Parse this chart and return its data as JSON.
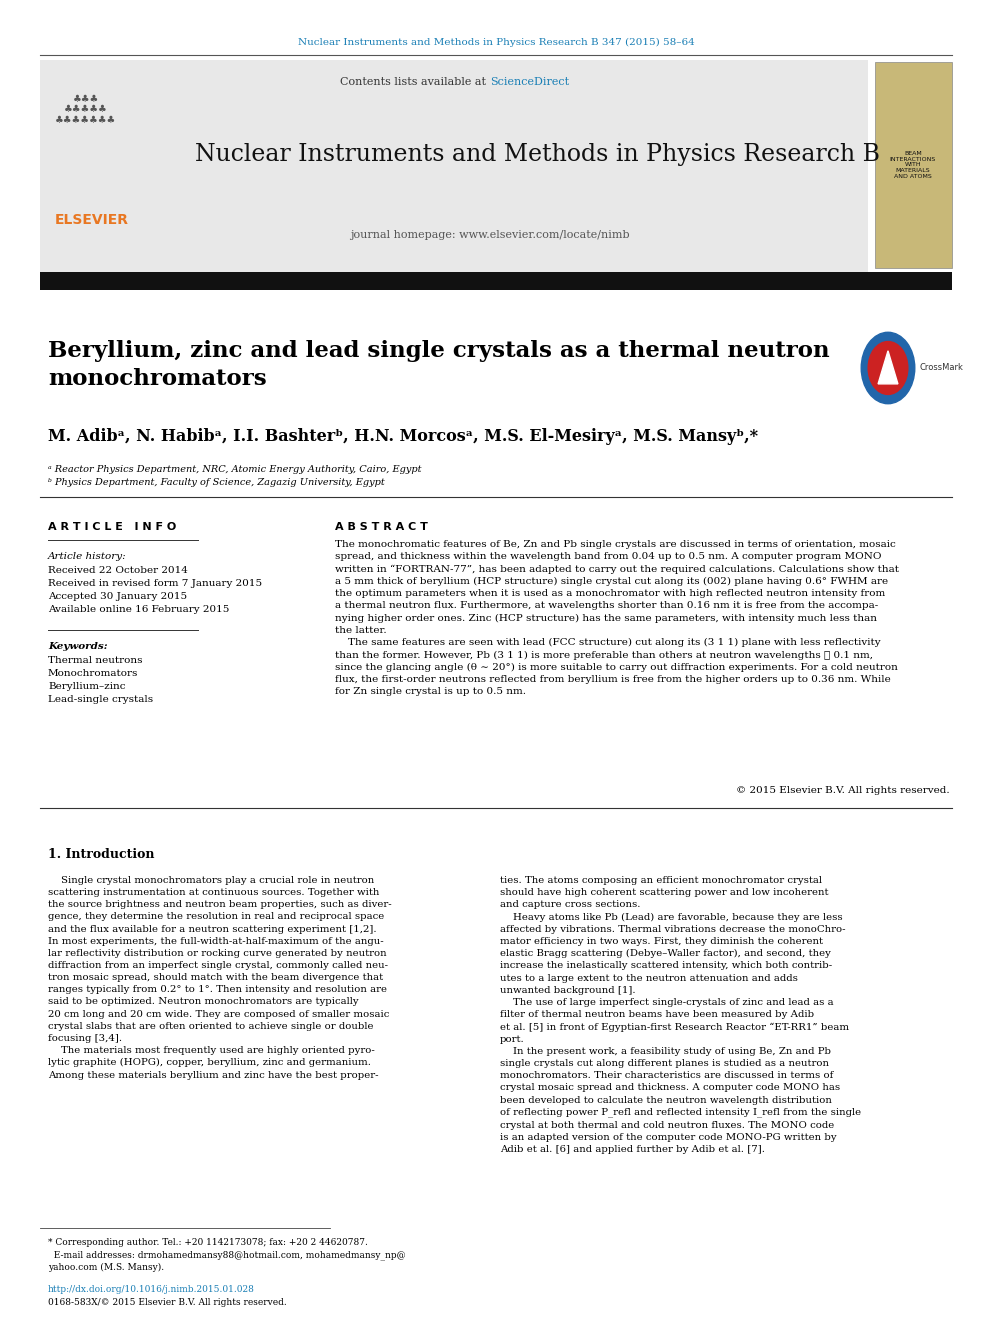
{
  "page_width": 9.92,
  "page_height": 13.23,
  "bg_color": "#ffffff",
  "top_link_text": "Nuclear Instruments and Methods in Physics Research B 347 (2015) 58–64",
  "top_link_color": "#1a7fb5",
  "journal_header_bg": "#e8e8e8",
  "sciencedirect_color": "#1a7fb5",
  "journal_name": "Nuclear Instruments and Methods in Physics Research B",
  "journal_homepage": "journal homepage: www.elsevier.com/locate/nimb",
  "article_title": "Beryllium, zinc and lead single crystals as a thermal neutron\nmonochromators",
  "authors": "M. Adibᵃ, N. Habibᵃ, I.I. Bashterᵇ, H.N. Morcosᵃ, M.S. El-Mesiryᵃ, M.S. Mansyᵇ,*",
  "affil_a": "ᵃ Reactor Physics Department, NRC, Atomic Energy Authority, Cairo, Egypt",
  "affil_b": "ᵇ Physics Department, Faculty of Science, Zagazig University, Egypt",
  "article_info_title": "A R T I C L E   I N F O",
  "abstract_title": "A B S T R A C T",
  "article_history_label": "Article history:",
  "received1": "Received 22 October 2014",
  "received2": "Received in revised form 7 January 2015",
  "accepted": "Accepted 30 January 2015",
  "available": "Available online 16 February 2015",
  "keywords_label": "Keywords:",
  "kw1": "Thermal neutrons",
  "kw2": "Monochromators",
  "kw3": "Beryllium–zinc",
  "kw4": "Lead-single crystals",
  "abstract_text": "The monochromatic features of Be, Zn and Pb single crystals are discussed in terms of orientation, mosaic\nspread, and thickness within the wavelength band from 0.04 up to 0.5 nm. A computer program MONO\nwritten in “FORTRAN-77”, has been adapted to carry out the required calculations. Calculations show that\na 5 mm thick of beryllium (HCP structure) single crystal cut along its (002) plane having 0.6° FWHM are\nthe optimum parameters when it is used as a monochromator with high reflected neutron intensity from\na thermal neutron flux. Furthermore, at wavelengths shorter than 0.16 nm it is free from the accompa-\nnying higher order ones. Zinc (HCP structure) has the same parameters, with intensity much less than\nthe latter.\n    The same features are seen with lead (FCC structure) cut along its (3 1 1) plane with less reflectivity\nthan the former. However, Pb (3 1 1) is more preferable than others at neutron wavelengths ⩽ 0.1 nm,\nsince the glancing angle (θ ∼ 20°) is more suitable to carry out diffraction experiments. For a cold neutron\nflux, the first-order neutrons reflected from beryllium is free from the higher orders up to 0.36 nm. While\nfor Zn single crystal is up to 0.5 nm.",
  "copyright_text": "© 2015 Elsevier B.V. All rights reserved.",
  "intro_title": "1. Introduction",
  "intro_col1": "    Single crystal monochromators play a crucial role in neutron\nscattering instrumentation at continuous sources. Together with\nthe source brightness and neutron beam properties, such as diver-\ngence, they determine the resolution in real and reciprocal space\nand the flux available for a neutron scattering experiment [1,2].\nIn most experiments, the full-width-at-half-maximum of the angu-\nlar reflectivity distribution or rocking curve generated by neutron\ndiffraction from an imperfect single crystal, commonly called neu-\ntron mosaic spread, should match with the beam divergence that\nranges typically from 0.2° to 1°. Then intensity and resolution are\nsaid to be optimized. Neutron monochromators are typically\n20 cm long and 20 cm wide. They are composed of smaller mosaic\ncrystal slabs that are often oriented to achieve single or double\nfocusing [3,4].\n    The materials most frequently used are highly oriented pyro-\nlytic graphite (HOPG), copper, beryllium, zinc and germanium.\nAmong these materials beryllium and zinc have the best proper-",
  "intro_col2": "ties. The atoms composing an efficient monochromator crystal\nshould have high coherent scattering power and low incoherent\nand capture cross sections.\n    Heavy atoms like Pb (Lead) are favorable, because they are less\naffected by vibrations. Thermal vibrations decrease the monoChro-\nmator efficiency in two ways. First, they diminish the coherent\nelastic Bragg scattering (Debye–Waller factor), and second, they\nincrease the inelastically scattered intensity, which both contrib-\nutes to a large extent to the neutron attenuation and adds\nunwanted background [1].\n    The use of large imperfect single-crystals of zinc and lead as a\nfilter of thermal neutron beams have been measured by Adib\net al. [5] in front of Egyptian-first Research Reactor “ET-RR1” beam\nport.\n    In the present work, a feasibility study of using Be, Zn and Pb\nsingle crystals cut along different planes is studied as a neutron\nmonochromators. Their characteristics are discussed in terms of\ncrystal mosaic spread and thickness. A computer code MONO has\nbeen developed to calculate the neutron wavelength distribution\nof reflecting power P_refl and reflected intensity I_refl from the single\ncrystal at both thermal and cold neutron fluxes. The MONO code\nis an adapted version of the computer code MONO-PG written by\nAdib et al. [6] and applied further by Adib et al. [7].",
  "footnote_text": "* Corresponding author. Tel.: +20 1142173078; fax: +20 2 44620787.\n  E-mail addresses: drmohamedmansy88@hotmail.com, mohamedmansy_np@\nyahoo.com (M.S. Mansy).",
  "doi_text": "http://dx.doi.org/10.1016/j.nimb.2015.01.028",
  "issn_text": "0168-583X/© 2015 Elsevier B.V. All rights reserved.",
  "elsevier_color": "#e87722",
  "thumbnail_text": "BEAM\nINTERACTIONS\nWITH\nMATERIALS\nAND ATOMS"
}
